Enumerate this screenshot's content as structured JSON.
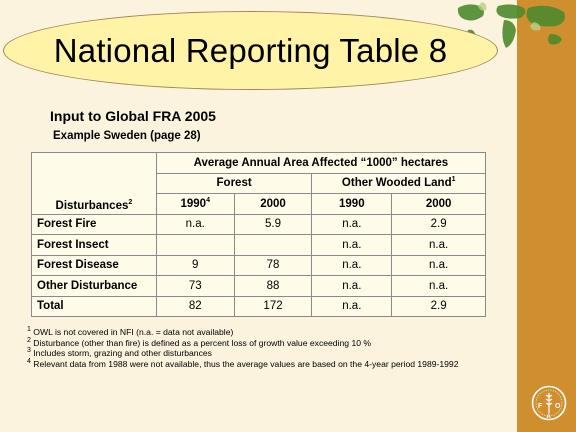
{
  "title": "National Reporting Table 8",
  "subtitle": "Input to Global FRA 2005",
  "example": "Example Sweden (page 28)",
  "table": {
    "header_main": "Average Annual Area Affected “1000” hectares",
    "row_header": "Disturbances",
    "row_header_sup": "2",
    "group_forest": "Forest",
    "group_owl": "Other Wooded Land",
    "group_owl_sup": "1",
    "years": [
      {
        "label": "1990",
        "sup": "4"
      },
      {
        "label": "2000",
        "sup": ""
      },
      {
        "label": "1990",
        "sup": ""
      },
      {
        "label": "2000",
        "sup": ""
      }
    ],
    "rows": [
      {
        "label": "Forest Fire",
        "values": [
          "n.a.",
          "5.9",
          "n.a.",
          "2.9"
        ]
      },
      {
        "label": "Forest Insect",
        "values": [
          "",
          "",
          "n.a.",
          "n.a."
        ]
      },
      {
        "label": "Forest Disease",
        "values": [
          "9",
          "78",
          "n.a.",
          "n.a."
        ]
      },
      {
        "label": "Other Disturbance",
        "values": [
          "73",
          "88",
          "n.a.",
          "n.a."
        ]
      },
      {
        "label": "Total",
        "values": [
          "82",
          "172",
          "n.a.",
          "2.9"
        ]
      }
    ]
  },
  "footnotes": [
    {
      "mark": "1",
      "text": "OWL is not covered in NFI (n.a. = data not available)"
    },
    {
      "mark": "2",
      "text": "Disturbance (other than fire) is defined as a percent loss of growth value exceeding 10 %"
    },
    {
      "mark": "3",
      "text": "Includes storm, grazing and other disturbances"
    },
    {
      "mark": "4",
      "text": "Relevant data from 1988 were not available, thus the average values are based on the 4-year period 1989-1992"
    }
  ],
  "logo": {
    "text": "FAO",
    "icon": "fao-logo-icon"
  },
  "colors": {
    "sidebar": "#d08f2e",
    "background": "#fbf3de",
    "oval": "#fff3a8"
  }
}
